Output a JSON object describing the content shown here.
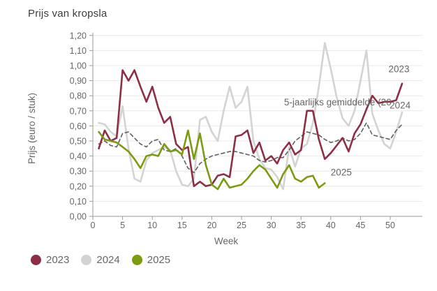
{
  "title": "Prijs van kropsla",
  "chart_data": {
    "type": "line",
    "title": "Prijs van kropsla",
    "xlabel": "Week",
    "ylabel": "Prijs (euro / stuk)",
    "xlim": [
      0,
      53
    ],
    "ylim": [
      0,
      1.2
    ],
    "xticks": [
      0,
      5,
      10,
      15,
      20,
      25,
      30,
      35,
      40,
      45,
      50
    ],
    "yticks": [
      0.0,
      0.1,
      0.2,
      0.3,
      0.4,
      0.5,
      0.6,
      0.7,
      0.8,
      0.9,
      1.0,
      1.1,
      1.2
    ],
    "grid": true,
    "decimal_separator": ",",
    "legend_position": "bottom-left",
    "x_start_week": 1,
    "series": [
      {
        "name": "2024",
        "color": "#d3d3d3",
        "style": "solid",
        "values": [
          0.62,
          0.61,
          0.56,
          0.53,
          0.73,
          0.45,
          0.25,
          0.23,
          0.37,
          0.42,
          0.44,
          0.46,
          0.44,
          0.3,
          0.21,
          0.2,
          0.25,
          0.64,
          0.66,
          0.56,
          0.5,
          0.7,
          0.86,
          0.72,
          0.76,
          0.86,
          0.5,
          0.38,
          0.32,
          0.31,
          0.26,
          0.18,
          0.46,
          0.33,
          0.45,
          0.48,
          0.62,
          0.86,
          1.15,
          0.98,
          0.79,
          0.65,
          0.6,
          0.7,
          0.9,
          1.1,
          0.68,
          0.57,
          0.48,
          0.45,
          0.56,
          0.69
        ]
      },
      {
        "name": "5-jaarlijks gemiddelde (20",
        "color": "#5f5f5f",
        "style": "dashed",
        "values": [
          0.48,
          0.5,
          0.47,
          0.46,
          0.55,
          0.56,
          0.52,
          0.48,
          0.46,
          0.5,
          0.51,
          0.44,
          0.43,
          0.45,
          0.4,
          0.32,
          0.29,
          0.35,
          0.38,
          0.4,
          0.41,
          0.42,
          0.43,
          0.43,
          0.42,
          0.41,
          0.4,
          0.37,
          0.36,
          0.37,
          0.39,
          0.39,
          0.44,
          0.5,
          0.53,
          0.56,
          0.55,
          0.54,
          0.51,
          0.49,
          0.5,
          0.52,
          0.5,
          0.51,
          0.55,
          0.62,
          0.54,
          0.53,
          0.52,
          0.51,
          0.57,
          0.61
        ]
      },
      {
        "name": "2023",
        "color": "#8e2e44",
        "style": "solid",
        "values": [
          0.45,
          0.57,
          0.5,
          0.52,
          0.97,
          0.9,
          0.97,
          0.86,
          0.76,
          0.86,
          0.72,
          0.62,
          0.66,
          0.48,
          0.44,
          0.46,
          0.2,
          0.23,
          0.2,
          0.21,
          0.27,
          0.28,
          0.26,
          0.53,
          0.54,
          0.57,
          0.42,
          0.49,
          0.37,
          0.4,
          0.35,
          0.44,
          0.49,
          0.41,
          0.44,
          0.7,
          0.7,
          0.51,
          0.38,
          0.42,
          0.47,
          0.52,
          0.43,
          0.55,
          0.61,
          0.71,
          0.8,
          0.75,
          0.76,
          0.76,
          0.77,
          0.88
        ]
      },
      {
        "name": "2025",
        "color": "#7a9b12",
        "style": "solid",
        "values": [
          0.56,
          0.51,
          0.5,
          0.49,
          0.46,
          0.43,
          0.38,
          0.32,
          0.4,
          0.41,
          0.4,
          0.48,
          0.43,
          0.44,
          0.41,
          0.57,
          0.38,
          0.55,
          0.34,
          0.21,
          0.18,
          0.25,
          0.19,
          0.2,
          0.21,
          0.25,
          0.3,
          0.34,
          0.31,
          0.25,
          0.19,
          0.28,
          0.34,
          0.25,
          0.23,
          0.26,
          0.27,
          0.19,
          0.22
        ]
      }
    ],
    "annotations": [
      {
        "text": "2023",
        "week": 49.7,
        "value": 0.955,
        "anchor": "start"
      },
      {
        "text": "2024",
        "week": 49.9,
        "value": 0.715,
        "anchor": "start"
      },
      {
        "text": "5-jaarlijks gemiddelde (20",
        "week": 50.2,
        "value": 0.735,
        "anchor": "end"
      },
      {
        "text": "2025",
        "week": 40.0,
        "value": 0.27,
        "anchor": "start"
      }
    ]
  },
  "legend": {
    "items": [
      {
        "label": "2023",
        "color": "#8e2e44"
      },
      {
        "label": "2024",
        "color": "#d3d3d3"
      },
      {
        "label": "2025",
        "color": "#7a9b12"
      }
    ]
  },
  "colors": {
    "background": "#ffffff",
    "gridline": "#e8e8e8",
    "axis": "#9a9a9a",
    "tick_text": "#666666",
    "title_text": "#3e3e3e"
  }
}
